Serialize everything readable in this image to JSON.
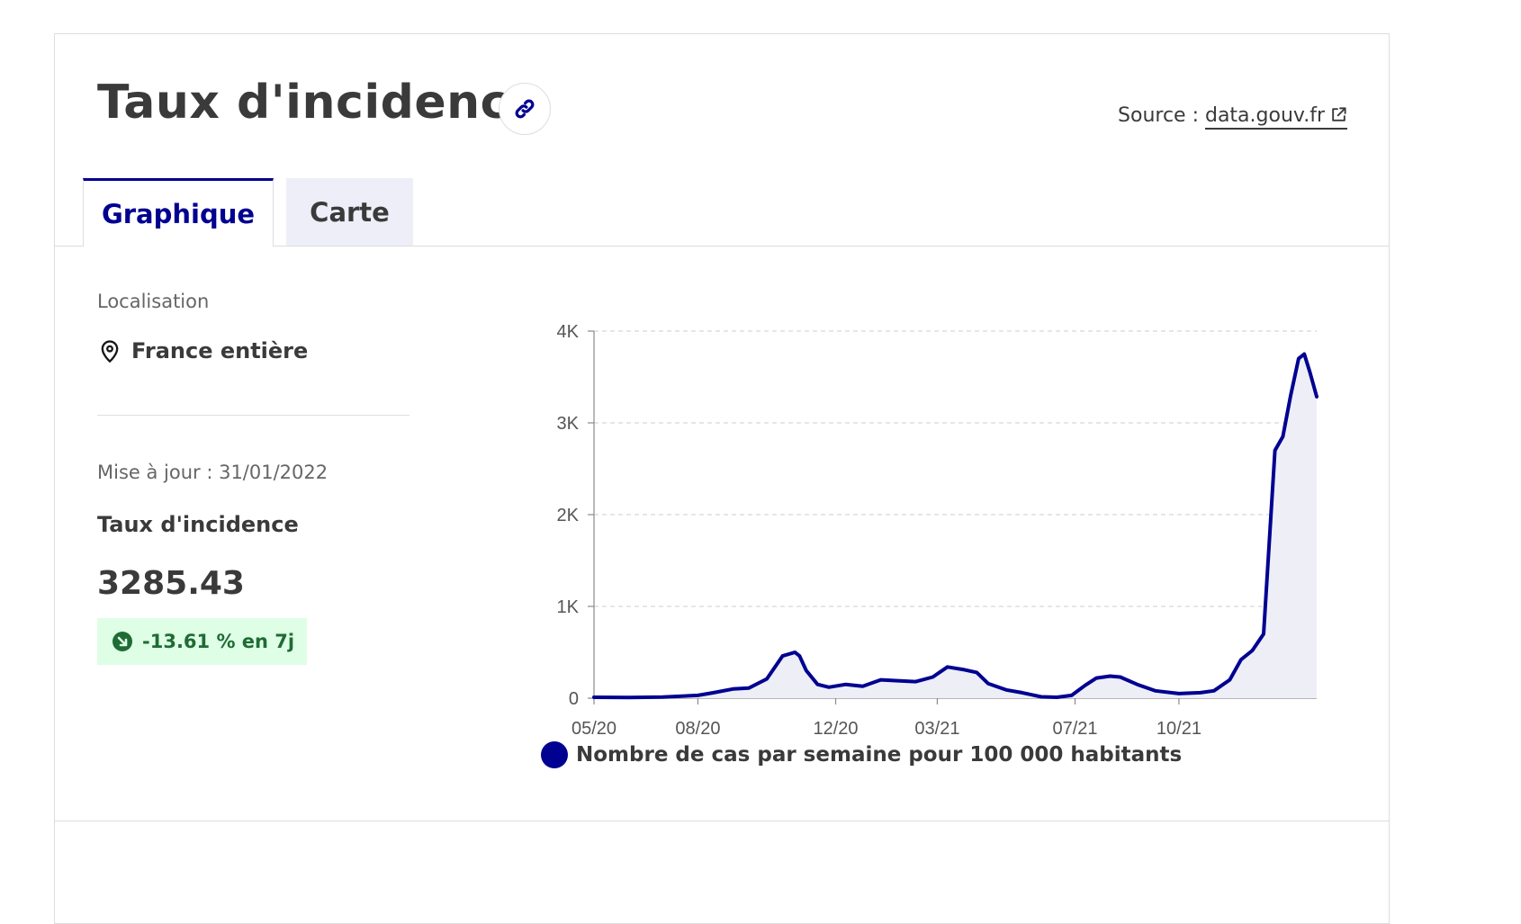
{
  "header": {
    "title": "Taux d'incidence",
    "source_label": "Source : ",
    "source_link": "data.gouv.fr"
  },
  "tabs": [
    {
      "label": "Graphique",
      "active": true
    },
    {
      "label": "Carte",
      "active": false
    }
  ],
  "sidebar": {
    "location_label": "Localisation",
    "location_value": "France entière",
    "update": "Mise à jour : 31/01/2022",
    "metric_label": "Taux d'incidence",
    "metric_value": "3285.43",
    "trend": "-13.61 % en 7j"
  },
  "colors": {
    "series": "#000091",
    "fill": "#eeeef7",
    "trend_bg": "#dffee6",
    "trend_text": "#1f6b34"
  },
  "chart_data": {
    "type": "area",
    "ylim": [
      0,
      4000
    ],
    "y_ticks": [
      0,
      1000,
      2000,
      3000,
      4000
    ],
    "y_tick_labels": [
      "0",
      "1K",
      "2K",
      "3K",
      "4K"
    ],
    "x_ticks": [
      "2020-05-01",
      "2020-08-01",
      "2020-12-01",
      "2021-03-01",
      "2021-07-01",
      "2021-10-01"
    ],
    "x_tick_labels": [
      "05/20",
      "08/20",
      "12/20",
      "03/21",
      "07/21",
      "10/21"
    ],
    "grid": true,
    "legend_position": "bottom",
    "series": [
      {
        "name": "Nombre de cas par semaine pour 100 000 habitants",
        "x": [
          "2020-05-01",
          "2020-06-01",
          "2020-07-01",
          "2020-08-01",
          "2020-08-15",
          "2020-09-01",
          "2020-09-15",
          "2020-10-01",
          "2020-10-15",
          "2020-10-26",
          "2020-10-30",
          "2020-11-05",
          "2020-11-15",
          "2020-11-25",
          "2020-12-10",
          "2020-12-25",
          "2021-01-10",
          "2021-01-25",
          "2021-02-10",
          "2021-02-25",
          "2021-03-10",
          "2021-03-25",
          "2021-04-05",
          "2021-04-15",
          "2021-05-01",
          "2021-05-15",
          "2021-06-01",
          "2021-06-15",
          "2021-06-28",
          "2021-07-10",
          "2021-07-20",
          "2021-08-01",
          "2021-08-10",
          "2021-08-25",
          "2021-09-10",
          "2021-10-01",
          "2021-10-20",
          "2021-11-01",
          "2021-11-15",
          "2021-11-25",
          "2021-12-05",
          "2021-12-15",
          "2021-12-25",
          "2022-01-01",
          "2022-01-08",
          "2022-01-15",
          "2022-01-20",
          "2022-01-25",
          "2022-01-31"
        ],
        "y": [
          10,
          8,
          12,
          30,
          60,
          100,
          110,
          210,
          460,
          500,
          460,
          300,
          150,
          120,
          150,
          130,
          200,
          190,
          180,
          230,
          340,
          310,
          280,
          160,
          90,
          60,
          15,
          10,
          30,
          140,
          220,
          240,
          230,
          150,
          80,
          50,
          60,
          80,
          200,
          420,
          520,
          700,
          2700,
          2850,
          3300,
          3700,
          3750,
          3550,
          3285.43
        ]
      }
    ]
  }
}
